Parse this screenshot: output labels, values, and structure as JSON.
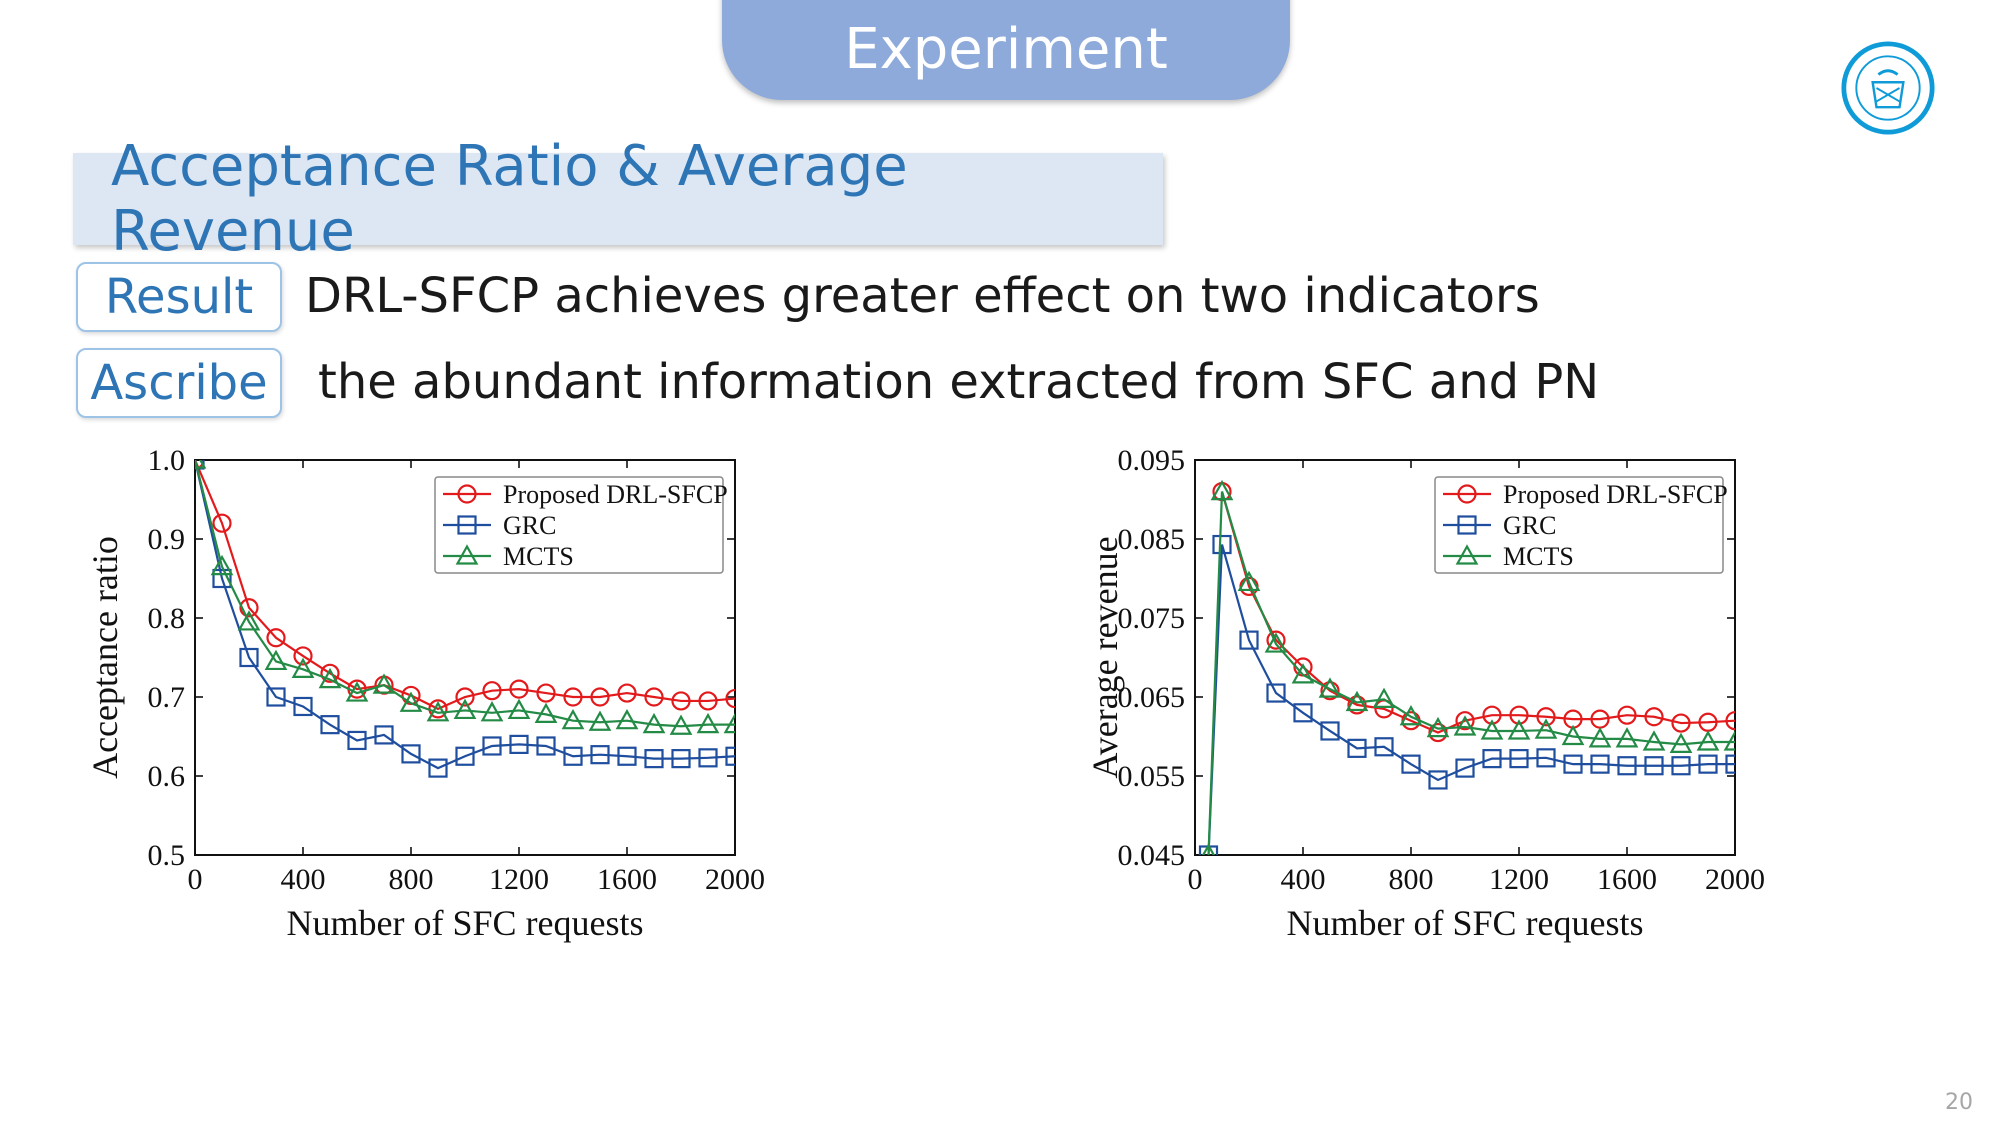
{
  "header": {
    "title": "Experiment"
  },
  "section": {
    "title": "Acceptance Ratio & Average Revenue"
  },
  "rows": [
    {
      "tag": "Result",
      "text": "DRL-SFCP achieves greater effect on two indicators"
    },
    {
      "tag": "Ascribe",
      "text": "the abundant information extracted from SFC and PN"
    }
  ],
  "page_number": "20",
  "colors": {
    "red": "#e31a1c",
    "blue": "#1f4e9e",
    "green": "#238b45",
    "accent": "#2e75b6",
    "tab": "#8eaadb"
  },
  "chart_data": [
    {
      "type": "line",
      "xlabel": "Number of SFC requests",
      "ylabel": "Acceptance ratio",
      "xlim": [
        0,
        2000
      ],
      "ylim": [
        0.5,
        1.0
      ],
      "xticks": [
        0,
        400,
        800,
        1200,
        1600,
        2000
      ],
      "yticks": [
        0.5,
        0.6,
        0.7,
        0.8,
        0.9,
        1.0
      ],
      "ytick_labels": [
        "0.5",
        "0.6",
        "0.7",
        "0.8",
        "0.9",
        "1.0"
      ],
      "grid": false,
      "legend": "top-right",
      "x": [
        0,
        100,
        200,
        300,
        400,
        500,
        600,
        700,
        800,
        900,
        1000,
        1100,
        1200,
        1300,
        1400,
        1500,
        1600,
        1700,
        1800,
        1900,
        2000
      ],
      "series": [
        {
          "name": "Proposed DRL-SFCP",
          "marker": "circle",
          "color": "#e31a1c",
          "values": [
            1.0,
            0.92,
            0.813,
            0.775,
            0.752,
            0.73,
            0.71,
            0.715,
            0.702,
            0.685,
            0.7,
            0.708,
            0.71,
            0.705,
            0.7,
            0.7,
            0.705,
            0.7,
            0.695,
            0.695,
            0.698
          ]
        },
        {
          "name": "GRC",
          "marker": "square",
          "color": "#1f4e9e",
          "values": [
            1.0,
            0.85,
            0.75,
            0.7,
            0.688,
            0.665,
            0.645,
            0.652,
            0.628,
            0.61,
            0.625,
            0.638,
            0.64,
            0.638,
            0.625,
            0.627,
            0.625,
            0.622,
            0.622,
            0.623,
            0.625
          ]
        },
        {
          "name": "MCTS",
          "marker": "triangle",
          "color": "#238b45",
          "values": [
            1.0,
            0.865,
            0.795,
            0.745,
            0.735,
            0.722,
            0.705,
            0.715,
            0.692,
            0.68,
            0.683,
            0.68,
            0.683,
            0.678,
            0.67,
            0.668,
            0.67,
            0.665,
            0.663,
            0.665,
            0.665
          ]
        }
      ]
    },
    {
      "type": "line",
      "xlabel": "Number of SFC requests",
      "ylabel": "Average revenue",
      "xlim": [
        0,
        2000
      ],
      "ylim": [
        0.045,
        0.095
      ],
      "xticks": [
        0,
        400,
        800,
        1200,
        1600,
        2000
      ],
      "yticks": [
        0.045,
        0.055,
        0.065,
        0.075,
        0.085,
        0.095
      ],
      "ytick_labels": [
        "0.045",
        "0.055",
        "0.065",
        "0.075",
        "0.085",
        "0.095"
      ],
      "grid": false,
      "legend": "top-right",
      "x": [
        50,
        100,
        200,
        300,
        400,
        500,
        600,
        700,
        800,
        900,
        1000,
        1100,
        1200,
        1300,
        1400,
        1500,
        1600,
        1700,
        1800,
        1900,
        2000
      ],
      "series": [
        {
          "name": "Proposed DRL-SFCP",
          "marker": "circle",
          "color": "#e31a1c",
          "values": [
            null,
            0.091,
            0.079,
            0.0722,
            0.0688,
            0.0658,
            0.064,
            0.0635,
            0.062,
            0.0605,
            0.062,
            0.0627,
            0.0627,
            0.0625,
            0.0622,
            0.0622,
            0.0627,
            0.0625,
            0.0617,
            0.0618,
            0.062
          ]
        },
        {
          "name": "GRC",
          "marker": "square",
          "color": "#1f4e9e",
          "values": [
            0.045,
            0.0843,
            0.0722,
            0.0655,
            0.063,
            0.0607,
            0.0585,
            0.0587,
            0.0565,
            0.0545,
            0.056,
            0.0572,
            0.0572,
            0.0573,
            0.0565,
            0.0565,
            0.0563,
            0.0563,
            0.0563,
            0.0565,
            0.0565
          ]
        },
        {
          "name": "MCTS",
          "marker": "triangle",
          "color": "#238b45",
          "values": [
            0.045,
            0.091,
            0.0795,
            0.0717,
            0.0678,
            0.066,
            0.0643,
            0.0647,
            0.0625,
            0.061,
            0.0612,
            0.0607,
            0.0607,
            0.0608,
            0.06,
            0.0597,
            0.0597,
            0.0593,
            0.059,
            0.0593,
            0.0593
          ]
        }
      ]
    }
  ]
}
